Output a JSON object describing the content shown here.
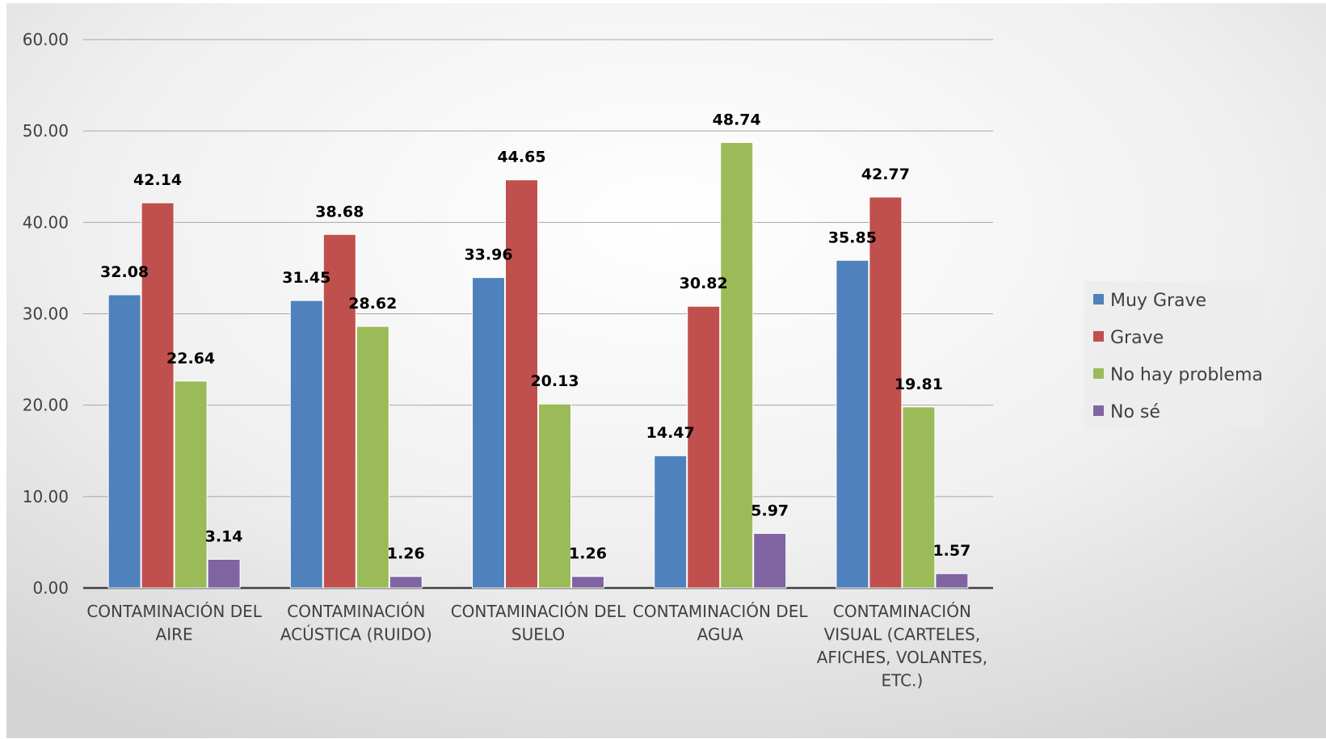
{
  "chart_data": {
    "type": "bar",
    "title": "",
    "xlabel": "",
    "ylabel": "",
    "ylim": [
      0,
      60
    ],
    "yticks": [
      "0.00",
      "10.00",
      "20.00",
      "30.00",
      "40.00",
      "50.00",
      "60.00"
    ],
    "grid": true,
    "legend_position": "right",
    "categories": [
      [
        "CONTAMINACIÓN DEL",
        "AIRE"
      ],
      [
        "CONTAMINACIÓN",
        "ACÚSTICA (RUIDO)"
      ],
      [
        "CONTAMINACIÓN DEL",
        "SUELO"
      ],
      [
        "CONTAMINACIÓN DEL",
        "AGUA"
      ],
      [
        "CONTAMINACIÓN",
        "VISUAL (CARTELES,",
        "AFICHES, VOLANTES,",
        "ETC.)"
      ]
    ],
    "series": [
      {
        "name": "Muy Grave",
        "color": "#4F81BD",
        "values": [
          32.08,
          31.45,
          33.96,
          14.47,
          35.85
        ],
        "labels": [
          "32.08",
          "31.45",
          "33.96",
          "14.47",
          "35.85"
        ]
      },
      {
        "name": "Grave",
        "color": "#C0504D",
        "values": [
          42.14,
          38.68,
          44.65,
          30.82,
          42.77
        ],
        "labels": [
          "42.14",
          "38.68",
          "44.65",
          "30.82",
          "42.77"
        ]
      },
      {
        "name": "No hay problema",
        "color": "#9BBB59",
        "values": [
          22.64,
          28.62,
          20.13,
          48.74,
          19.81
        ],
        "labels": [
          "22.64",
          "28.62",
          "20.13",
          "48.74",
          "19.81"
        ]
      },
      {
        "name": "No sé",
        "color": "#8064A2",
        "values": [
          3.14,
          1.26,
          1.26,
          5.97,
          1.57
        ],
        "labels": [
          "3.14",
          "1.26",
          "1.26",
          "5.97",
          "1.57"
        ]
      }
    ]
  }
}
